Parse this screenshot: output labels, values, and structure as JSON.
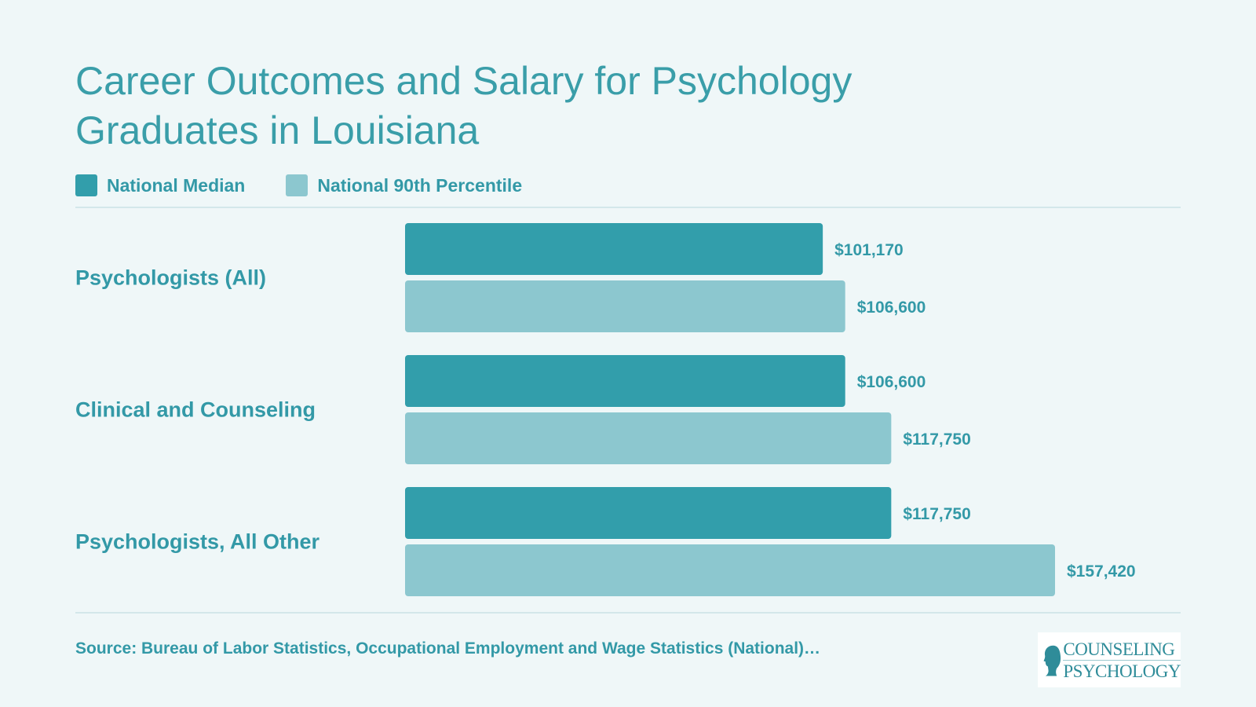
{
  "title": {
    "line1": "Career Outcomes and Salary for Psychology",
    "line2": "Graduates in Louisiana"
  },
  "colors": {
    "median": "#329eab",
    "p90": "#8cc7cf",
    "label": "#3399a7",
    "background": "#eff7f8"
  },
  "legend": [
    {
      "label": "National Median",
      "color": "#329eab"
    },
    {
      "label": "National 90th Percentile",
      "color": "#8cc7cf"
    }
  ],
  "chart_data": {
    "type": "bar",
    "orientation": "horizontal",
    "categories": [
      "Psychologists (All)",
      "Clinical and Counseling",
      "Psychologists, All Other"
    ],
    "series": [
      {
        "name": "National Median",
        "values": [
          101170,
          106600,
          117750
        ],
        "labels": [
          "$101,170",
          "$106,600",
          "$117,750"
        ]
      },
      {
        "name": "National 90th Percentile",
        "values": [
          106600,
          117750,
          157420
        ],
        "labels": [
          "$106,600",
          "$117,750",
          "$157,420"
        ]
      }
    ],
    "xlim": [
      0,
      157420
    ],
    "legend_position": "top-left",
    "grid": false
  },
  "source": "Source: Bureau of Labor Statistics, Occupational Employment and Wage Statistics (National)…",
  "logo": {
    "line1": "COUNSELING",
    "line2": "PSYCHOLOGY",
    "icon": "head-silhouette-icon"
  }
}
